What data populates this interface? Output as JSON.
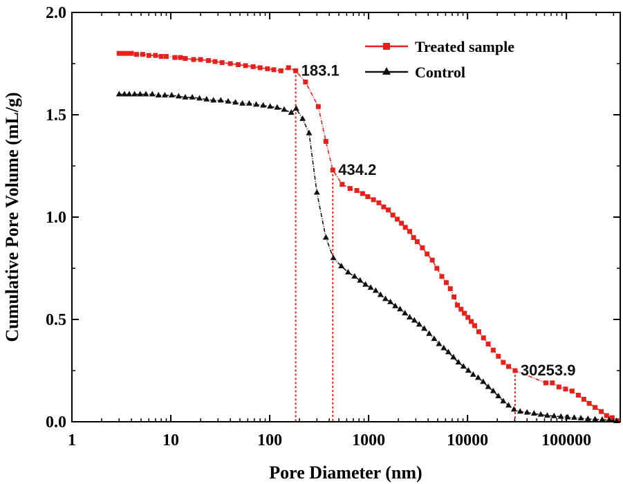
{
  "chart_data": {
    "type": "line",
    "title": "",
    "xlabel": "Pore Diameter (nm)",
    "ylabel": "Cumulative Pore Volume (mL/g)",
    "xscale": "log",
    "xlim": [
      1,
      350000
    ],
    "ylim": [
      0,
      2.0
    ],
    "x_ticks": [
      1,
      10,
      100,
      1000,
      10000,
      100000
    ],
    "x_tick_labels": [
      "1",
      "10",
      "100",
      "1000",
      "10000",
      "100000"
    ],
    "y_ticks": [
      0,
      0.5,
      1.0,
      1.5,
      2.0
    ],
    "y_tick_labels": [
      "0.0",
      "0.5",
      "1.0",
      "1.5",
      "2.0"
    ],
    "legend_position": "top-right",
    "series": [
      {
        "name": "Treated sample",
        "color": "#e8201c",
        "marker": "square",
        "points": [
          [
            3,
            1.8
          ],
          [
            3.3,
            1.8
          ],
          [
            3.6,
            1.8
          ],
          [
            4,
            1.8
          ],
          [
            4.5,
            1.795
          ],
          [
            5.2,
            1.795
          ],
          [
            6,
            1.79
          ],
          [
            7,
            1.79
          ],
          [
            8,
            1.785
          ],
          [
            9,
            1.785
          ],
          [
            11,
            1.78
          ],
          [
            12.5,
            1.78
          ],
          [
            14,
            1.775
          ],
          [
            17,
            1.77
          ],
          [
            20,
            1.77
          ],
          [
            24,
            1.765
          ],
          [
            28,
            1.76
          ],
          [
            33,
            1.755
          ],
          [
            40,
            1.75
          ],
          [
            48,
            1.745
          ],
          [
            57,
            1.74
          ],
          [
            68,
            1.735
          ],
          [
            80,
            1.73
          ],
          [
            95,
            1.725
          ],
          [
            110,
            1.72
          ],
          [
            130,
            1.715
          ],
          [
            155,
            1.73
          ],
          [
            183.1,
            1.715
          ],
          [
            230,
            1.66
          ],
          [
            310,
            1.54
          ],
          [
            370,
            1.37
          ],
          [
            434.2,
            1.23
          ],
          [
            540,
            1.16
          ],
          [
            650,
            1.14
          ],
          [
            760,
            1.13
          ],
          [
            870,
            1.115
          ],
          [
            980,
            1.1
          ],
          [
            1120,
            1.085
          ],
          [
            1270,
            1.07
          ],
          [
            1420,
            1.05
          ],
          [
            1580,
            1.035
          ],
          [
            1760,
            1.01
          ],
          [
            1950,
            0.99
          ],
          [
            2150,
            0.97
          ],
          [
            2350,
            0.95
          ],
          [
            2600,
            0.93
          ],
          [
            2850,
            0.9
          ],
          [
            3100,
            0.88
          ],
          [
            3500,
            0.85
          ],
          [
            3900,
            0.82
          ],
          [
            4400,
            0.79
          ],
          [
            4900,
            0.75
          ],
          [
            5500,
            0.71
          ],
          [
            6100,
            0.68
          ],
          [
            6700,
            0.65
          ],
          [
            7300,
            0.61
          ],
          [
            7900,
            0.57
          ],
          [
            8600,
            0.55
          ],
          [
            9300,
            0.53
          ],
          [
            10100,
            0.51
          ],
          [
            10900,
            0.49
          ],
          [
            11800,
            0.47
          ],
          [
            13000,
            0.44
          ],
          [
            14500,
            0.41
          ],
          [
            16200,
            0.38
          ],
          [
            18200,
            0.35
          ],
          [
            20500,
            0.32
          ],
          [
            23000,
            0.29
          ],
          [
            26000,
            0.27
          ],
          [
            30253.9,
            0.25
          ],
          [
            62000,
            0.19
          ],
          [
            72000,
            0.19
          ],
          [
            84000,
            0.17
          ],
          [
            98000,
            0.16
          ],
          [
            114000,
            0.15
          ],
          [
            132000,
            0.13
          ],
          [
            150000,
            0.11
          ],
          [
            170000,
            0.09
          ],
          [
            195000,
            0.07
          ],
          [
            225000,
            0.05
          ],
          [
            255000,
            0.03
          ],
          [
            290000,
            0.02
          ],
          [
            330000,
            0.005
          ]
        ]
      },
      {
        "name": "Control",
        "color": "#111111",
        "marker": "triangle",
        "points": [
          [
            3,
            1.6
          ],
          [
            3.4,
            1.6
          ],
          [
            3.8,
            1.6
          ],
          [
            4.3,
            1.6
          ],
          [
            4.9,
            1.6
          ],
          [
            5.6,
            1.6
          ],
          [
            6.5,
            1.6
          ],
          [
            7.5,
            1.595
          ],
          [
            8.7,
            1.595
          ],
          [
            10.2,
            1.595
          ],
          [
            12,
            1.59
          ],
          [
            14,
            1.585
          ],
          [
            16.5,
            1.585
          ],
          [
            19.5,
            1.58
          ],
          [
            23,
            1.575
          ],
          [
            27,
            1.57
          ],
          [
            32,
            1.57
          ],
          [
            38,
            1.565
          ],
          [
            45,
            1.56
          ],
          [
            53,
            1.555
          ],
          [
            62,
            1.555
          ],
          [
            73,
            1.55
          ],
          [
            86,
            1.545
          ],
          [
            101,
            1.54
          ],
          [
            119,
            1.535
          ],
          [
            140,
            1.525
          ],
          [
            165,
            1.51
          ],
          [
            185,
            1.53
          ],
          [
            215,
            1.48
          ],
          [
            250,
            1.41
          ],
          [
            300,
            1.12
          ],
          [
            370,
            0.9
          ],
          [
            440,
            0.8
          ],
          [
            530,
            0.76
          ],
          [
            620,
            0.73
          ],
          [
            720,
            0.71
          ],
          [
            820,
            0.69
          ],
          [
            930,
            0.67
          ],
          [
            1050,
            0.655
          ],
          [
            1180,
            0.64
          ],
          [
            1320,
            0.62
          ],
          [
            1480,
            0.6
          ],
          [
            1660,
            0.585
          ],
          [
            1860,
            0.565
          ],
          [
            2080,
            0.55
          ],
          [
            2330,
            0.53
          ],
          [
            2600,
            0.51
          ],
          [
            2900,
            0.495
          ],
          [
            3250,
            0.475
          ],
          [
            3650,
            0.455
          ],
          [
            4100,
            0.43
          ],
          [
            4600,
            0.405
          ],
          [
            5150,
            0.38
          ],
          [
            5750,
            0.36
          ],
          [
            6400,
            0.34
          ],
          [
            7200,
            0.315
          ],
          [
            8100,
            0.29
          ],
          [
            9100,
            0.27
          ],
          [
            10200,
            0.25
          ],
          [
            11400,
            0.23
          ],
          [
            12800,
            0.215
          ],
          [
            14400,
            0.195
          ],
          [
            16200,
            0.17
          ],
          [
            18200,
            0.15
          ],
          [
            20500,
            0.125
          ],
          [
            23000,
            0.1
          ],
          [
            26000,
            0.08
          ],
          [
            29500,
            0.06
          ],
          [
            34000,
            0.05
          ],
          [
            40000,
            0.045
          ],
          [
            47000,
            0.04
          ],
          [
            55000,
            0.035
          ],
          [
            64000,
            0.03
          ],
          [
            75000,
            0.028
          ],
          [
            88000,
            0.025
          ],
          [
            103000,
            0.022
          ],
          [
            120000,
            0.02
          ],
          [
            140000,
            0.017
          ],
          [
            165000,
            0.014
          ],
          [
            195000,
            0.012
          ],
          [
            230000,
            0.01
          ],
          [
            270000,
            0.008
          ],
          [
            320000,
            0.004
          ]
        ]
      }
    ],
    "annotations": [
      {
        "text": "183.1",
        "x": 183.1,
        "y": 1.715
      },
      {
        "text": "434.2",
        "x": 434.2,
        "y": 1.23
      },
      {
        "text": "30253.9",
        "x": 30253.9,
        "y": 0.25
      }
    ]
  }
}
